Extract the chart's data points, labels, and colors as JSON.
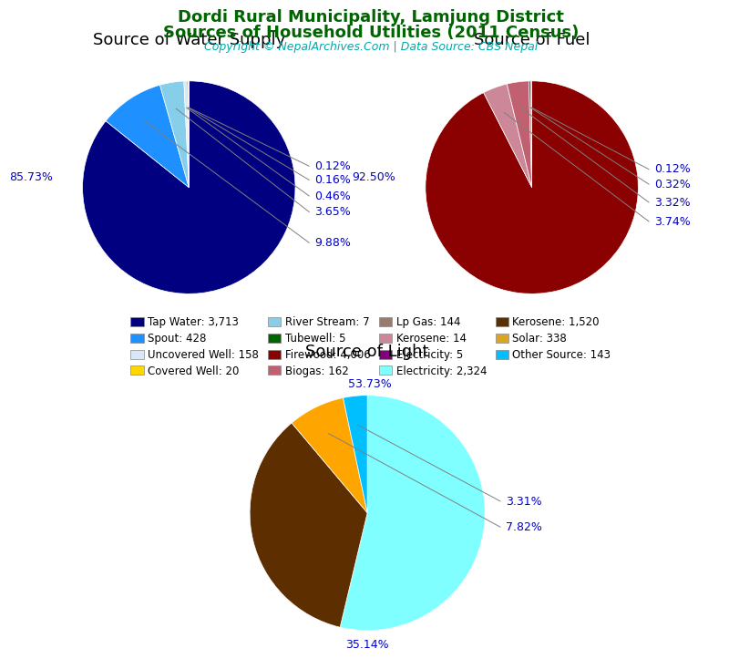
{
  "title_line1": "Dordi Rural Municipality, Lamjung District",
  "title_line2": "Sources of Household Utilities (2011 Census)",
  "copyright": "Copyright © NepalArchives.Com | Data Source: CBS Nepal",
  "title_color": "#006400",
  "copyright_color": "#00AAAA",
  "water_title": "Source of Water Supply",
  "water_pct": [
    85.73,
    9.88,
    3.65,
    0.46,
    0.16,
    0.12
  ],
  "water_labels": [
    "85.73%",
    "9.88%",
    "3.65%",
    "0.46%",
    "0.16%",
    "0.12%"
  ],
  "water_colors": [
    "#000080",
    "#1E90FF",
    "#87CEEB",
    "#D8E8F8",
    "#006400",
    "#FFD700"
  ],
  "fuel_title": "Source of Fuel",
  "fuel_pct": [
    92.5,
    3.74,
    3.32,
    0.32,
    0.12
  ],
  "fuel_labels": [
    "92.50%",
    "3.74%",
    "3.32%",
    "0.32%",
    "0.12%"
  ],
  "fuel_colors": [
    "#8B0000",
    "#CC8899",
    "#C06070",
    "#7B4B3A",
    "#800080"
  ],
  "light_title": "Source of Light",
  "light_pct": [
    53.73,
    35.14,
    7.82,
    3.31
  ],
  "light_labels": [
    "53.73%",
    "35.14%",
    "7.82%",
    "3.31%"
  ],
  "light_colors": [
    "#7FFFFF",
    "#5C2E00",
    "#FFA500",
    "#00BFFF"
  ],
  "legend_rows": [
    [
      {
        "label": "Tap Water: 3,713",
        "color": "#000080"
      },
      {
        "label": "Spout: 428",
        "color": "#1E90FF"
      },
      {
        "label": "Uncovered Well: 158",
        "color": "#D8E8F8"
      },
      {
        "label": "Covered Well: 20",
        "color": "#FFD700"
      }
    ],
    [
      {
        "label": "River Stream: 7",
        "color": "#87CEEB"
      },
      {
        "label": "Tubewell: 5",
        "color": "#006400"
      },
      {
        "label": "Firewood: 4,006",
        "color": "#8B0000"
      },
      {
        "label": "Biogas: 162",
        "color": "#C06070"
      }
    ],
    [
      {
        "label": "Lp Gas: 144",
        "color": "#9B7B6B"
      },
      {
        "label": "Kerosene: 14",
        "color": "#CC8899"
      },
      {
        "label": "Electricity: 5",
        "color": "#800080"
      },
      {
        "label": "Electricity: 2,324",
        "color": "#7FFFFF"
      }
    ],
    [
      {
        "label": "Kerosene: 1,520",
        "color": "#5C2E00"
      },
      {
        "label": "Solar: 338",
        "color": "#DAA520"
      },
      {
        "label": "Other Source: 143",
        "color": "#00BFFF"
      }
    ]
  ],
  "pct_color": "#0000CD",
  "pie_title_fontsize": 13,
  "legend_fontsize": 8.5
}
